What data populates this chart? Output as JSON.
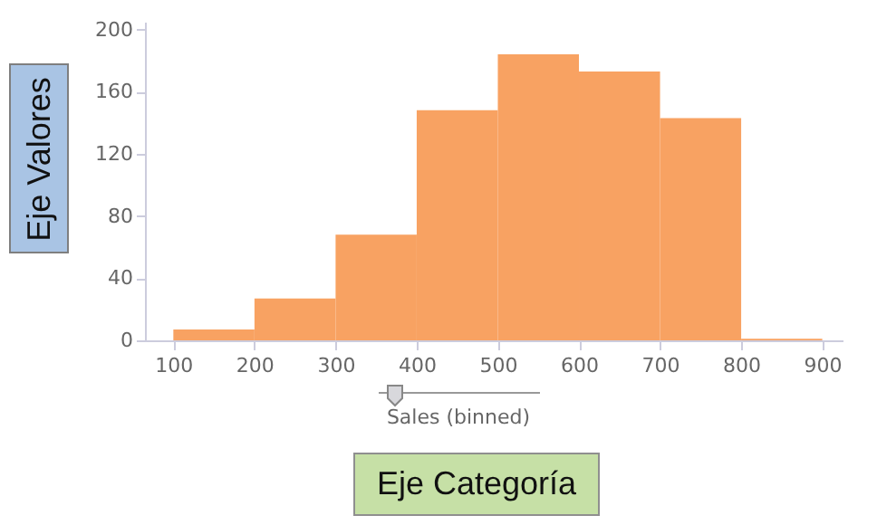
{
  "chart_data": {
    "type": "histogram",
    "bins": [
      100,
      200,
      300,
      400,
      500,
      600,
      700,
      800,
      900
    ],
    "values": [
      7,
      27,
      68,
      148,
      184,
      173,
      143,
      1
    ],
    "color": "#f8a262",
    "xlim": [
      65,
      925
    ],
    "xticks": [
      100,
      200,
      300,
      400,
      500,
      600,
      700,
      800,
      900
    ],
    "ylim": [
      0,
      205
    ],
    "yticks": [
      0,
      40,
      80,
      120,
      160,
      200
    ],
    "xlabel": "Eje Categoría",
    "ylabel": "Eje Valores",
    "annotations": [
      "Sales (binned)"
    ]
  }
}
